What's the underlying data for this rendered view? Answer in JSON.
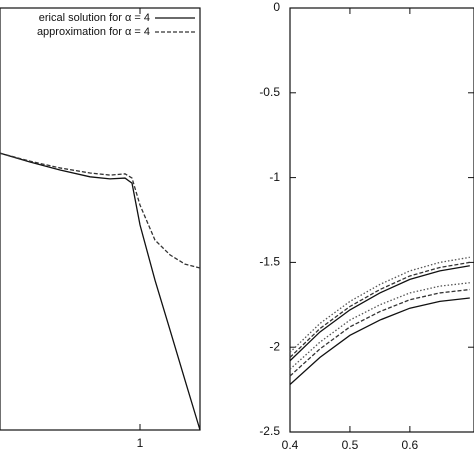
{
  "chart_data": [
    {
      "type": "line",
      "legend": "top-right",
      "x": [
        0.3,
        0.45,
        0.6,
        0.75,
        0.85,
        0.925,
        0.96,
        1.0,
        1.075,
        1.15,
        1.225,
        1.3
      ],
      "xlim": [
        0.3,
        1.3
      ],
      "xticks": [
        1
      ],
      "ylim": [
        0,
        1
      ],
      "series": [
        {
          "name": "erical solution for α = 4",
          "color": "#111111",
          "style": "solid",
          "values": [
            0.656,
            0.635,
            0.616,
            0.6,
            0.595,
            0.597,
            0.585,
            0.486,
            0.355,
            0.237,
            0.118,
            0
          ]
        },
        {
          "name": "approximation for α = 4",
          "color": "#333333",
          "style": "dashed",
          "values": [
            0.656,
            0.637,
            0.621,
            0.609,
            0.604,
            0.607,
            0.597,
            0.533,
            0.45,
            0.415,
            0.393,
            0.384
          ]
        }
      ]
    },
    {
      "type": "line",
      "x": [
        0.4,
        0.45,
        0.5,
        0.55,
        0.6,
        0.65,
        0.7
      ],
      "xlim": [
        0.4,
        0.707
      ],
      "xticks": [
        0.4,
        0.5,
        0.6
      ],
      "ylim": [
        -2.5,
        0
      ],
      "yticks": [
        -2.5,
        -2,
        -1.5,
        -1,
        -0.5,
        0
      ],
      "series": [
        {
          "color": "#111111",
          "style": "solid",
          "values": [
            -2.08,
            -1.91,
            -1.78,
            -1.68,
            -1.6,
            -1.55,
            -1.52
          ]
        },
        {
          "color": "#555555",
          "style": "dotted",
          "values": [
            -2.03,
            -1.86,
            -1.73,
            -1.63,
            -1.55,
            -1.5,
            -1.47
          ]
        },
        {
          "color": "#333333",
          "style": "dashed",
          "values": [
            -2.06,
            -1.89,
            -1.76,
            -1.66,
            -1.58,
            -1.53,
            -1.5
          ]
        },
        {
          "color": "#111111",
          "style": "solid",
          "values": [
            -2.22,
            -2.06,
            -1.93,
            -1.84,
            -1.77,
            -1.73,
            -1.71
          ]
        },
        {
          "color": "#555555",
          "style": "dotted",
          "values": [
            -2.13,
            -1.97,
            -1.84,
            -1.75,
            -1.68,
            -1.64,
            -1.62
          ]
        },
        {
          "color": "#333333",
          "style": "dashed",
          "values": [
            -2.17,
            -2.01,
            -1.88,
            -1.79,
            -1.72,
            -1.68,
            -1.66
          ]
        }
      ]
    }
  ]
}
